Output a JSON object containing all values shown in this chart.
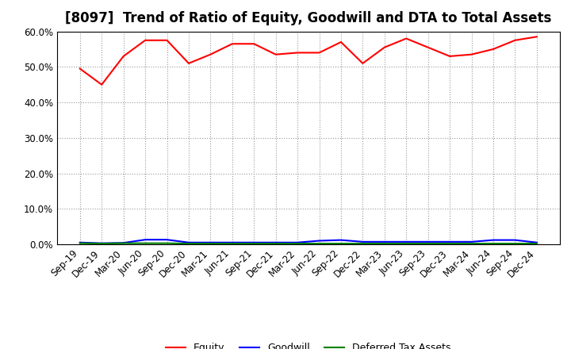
{
  "title": "[8097]  Trend of Ratio of Equity, Goodwill and DTA to Total Assets",
  "x_labels": [
    "Sep-19",
    "Dec-19",
    "Mar-20",
    "Jun-20",
    "Sep-20",
    "Dec-20",
    "Mar-21",
    "Jun-21",
    "Sep-21",
    "Dec-21",
    "Mar-22",
    "Jun-22",
    "Sep-22",
    "Dec-22",
    "Mar-23",
    "Jun-23",
    "Sep-23",
    "Dec-23",
    "Mar-24",
    "Jun-24",
    "Sep-24",
    "Dec-24"
  ],
  "equity": [
    49.5,
    45.0,
    53.0,
    57.5,
    57.5,
    51.0,
    53.5,
    56.5,
    56.5,
    53.5,
    54.0,
    54.0,
    57.0,
    51.0,
    55.5,
    58.0,
    55.5,
    53.0,
    53.5,
    55.0,
    57.5,
    58.5
  ],
  "goodwill": [
    0.5,
    0.3,
    0.4,
    1.3,
    1.3,
    0.5,
    0.5,
    0.5,
    0.5,
    0.5,
    0.5,
    1.0,
    1.2,
    0.7,
    0.7,
    0.7,
    0.7,
    0.7,
    0.7,
    1.2,
    1.2,
    0.5
  ],
  "dta": [
    0.3,
    0.2,
    0.3,
    0.3,
    0.3,
    0.2,
    0.2,
    0.2,
    0.2,
    0.2,
    0.2,
    0.2,
    0.2,
    0.2,
    0.2,
    0.2,
    0.2,
    0.2,
    0.2,
    0.2,
    0.2,
    0.2
  ],
  "equity_color": "#FF0000",
  "goodwill_color": "#0000FF",
  "dta_color": "#008000",
  "ylim": [
    0,
    60
  ],
  "yticks": [
    0,
    10,
    20,
    30,
    40,
    50,
    60
  ],
  "background_color": "#FFFFFF",
  "grid_color": "#999999",
  "title_fontsize": 12,
  "tick_fontsize": 8.5,
  "legend_fontsize": 9
}
